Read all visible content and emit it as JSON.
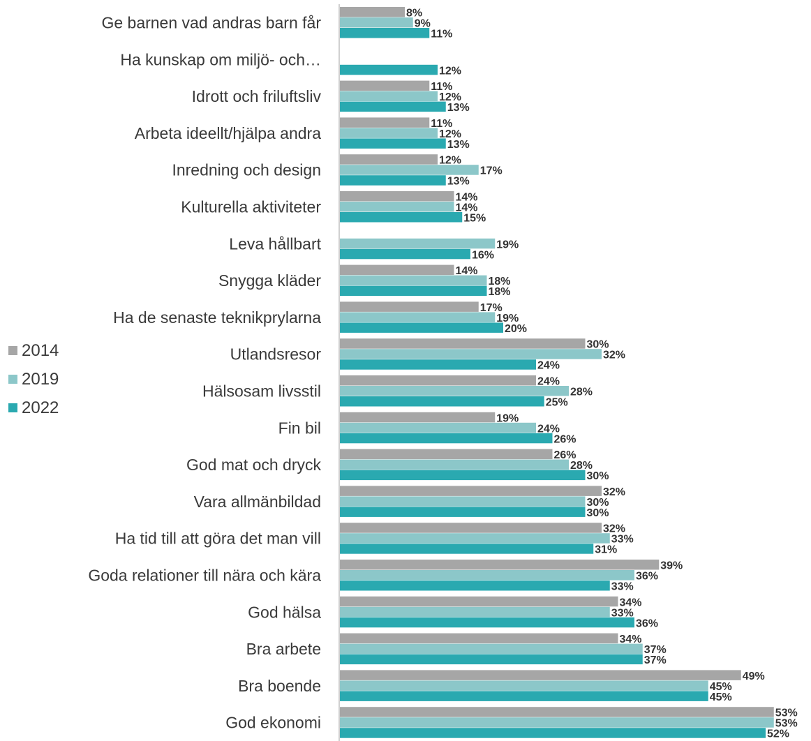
{
  "chart_data": {
    "type": "bar",
    "orientation": "horizontal",
    "categories": [
      "Ge barnen vad andras barn får",
      "Ha kunskap om miljö- och…",
      "Idrott och friluftsliv",
      "Arbeta ideellt/hjälpa andra",
      "Inredning och design",
      "Kulturella aktiviteter",
      "Leva hållbart",
      "Snygga kläder",
      "Ha de senaste teknikprylarna",
      "Utlandsresor",
      "Hälsosam livsstil",
      "Fin bil",
      "God mat och dryck",
      "Vara allmänbildad",
      "Ha tid till att göra det man vill",
      "Goda relationer till nära och kära",
      "God hälsa",
      "Bra arbete",
      "Bra boende",
      "God ekonomi"
    ],
    "series": [
      {
        "name": "2014",
        "color": "#a6a6a6",
        "values": [
          8,
          null,
          11,
          11,
          12,
          14,
          null,
          14,
          17,
          30,
          24,
          19,
          26,
          32,
          32,
          39,
          34,
          34,
          49,
          53
        ]
      },
      {
        "name": "2019",
        "color": "#8cc7c9",
        "values": [
          9,
          null,
          12,
          12,
          17,
          14,
          19,
          18,
          19,
          32,
          28,
          24,
          28,
          30,
          33,
          36,
          33,
          37,
          45,
          53
        ]
      },
      {
        "name": "2022",
        "color": "#2aa9b0",
        "values": [
          11,
          12,
          13,
          13,
          13,
          15,
          16,
          18,
          20,
          24,
          25,
          26,
          30,
          30,
          31,
          33,
          36,
          37,
          45,
          52
        ]
      }
    ],
    "value_suffix": "%",
    "xlim": [
      0,
      53
    ],
    "grid": false,
    "legend_position": "left"
  }
}
